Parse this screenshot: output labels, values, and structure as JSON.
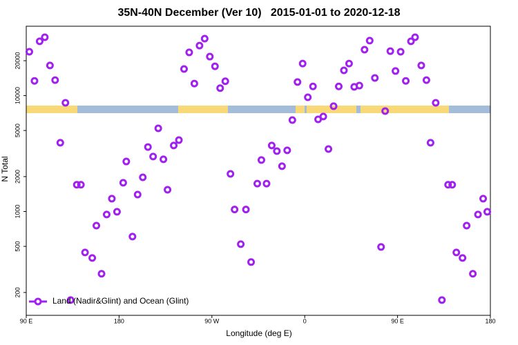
{
  "chart_data": {
    "type": "scatter",
    "title": "35N-40N December (Ver 10)   2015-01-01 to 2020-12-18",
    "xlabel": "Longitude (deg E)",
    "ylabel": "N Total",
    "log_y": true,
    "legend": "bottom-left",
    "xlim": [
      90,
      540
    ],
    "ylim": [
      127,
      39700
    ],
    "xticks": [
      {
        "value": 90,
        "label": "90 E"
      },
      180,
      {
        "value": 270,
        "label": "90 W"
      },
      {
        "value": 360,
        "label": "0"
      },
      {
        "value": 450,
        "label": "90 E"
      },
      {
        "value": 540,
        "label": "180"
      }
    ],
    "yticks": [
      200,
      500,
      1000,
      2000,
      5000,
      10000,
      20000
    ],
    "series": [
      {
        "name": "Land (Nadir&Glint) and Ocean (Glint)",
        "color": "#a020f0",
        "x": [
          93,
          98,
          103,
          108,
          113,
          118,
          123,
          128,
          133,
          139,
          143,
          147,
          154,
          158,
          163,
          168,
          173,
          178,
          184,
          187,
          193,
          198,
          203,
          208,
          213,
          218,
          223,
          227,
          233,
          238,
          243,
          248,
          253,
          258,
          263,
          268,
          273,
          278,
          283,
          288,
          292,
          298,
          303,
          308,
          314,
          318,
          323,
          328,
          333,
          338,
          343,
          348,
          353,
          358,
          363,
          368,
          373,
          378,
          383,
          388,
          393,
          398,
          403,
          408,
          413,
          418,
          423,
          428,
          434,
          438,
          443,
          448,
          453,
          458,
          463,
          467,
          473,
          478,
          482,
          487,
          493,
          499,
          503,
          507,
          513,
          517,
          523,
          528,
          533,
          537
        ],
        "values": [
          23900,
          13400,
          29400,
          31900,
          18200,
          13600,
          3920,
          8670,
          172,
          1700,
          1700,
          443,
          397,
          755,
          290,
          942,
          1290,
          994,
          1770,
          2700,
          607,
          1400,
          1970,
          3600,
          2980,
          5220,
          2820,
          1540,
          3710,
          4130,
          16970,
          23600,
          12700,
          27000,
          31000,
          21700,
          17900,
          11600,
          13300,
          2110,
          1040,
          522,
          1040,
          366,
          1740,
          2780,
          1740,
          3710,
          3320,
          2460,
          3370,
          6150,
          13100,
          18900,
          9670,
          12000,
          6240,
          6600,
          3460,
          8100,
          12000,
          16500,
          18900,
          11900,
          12200,
          24900,
          29800,
          14200,
          494,
          7350,
          24200,
          16300,
          23900,
          13400,
          29400,
          31900,
          18200,
          13600,
          3920,
          8670,
          172,
          1700,
          1700,
          443,
          397,
          755,
          290,
          942,
          1290,
          994
        ]
      }
    ]
  }
}
